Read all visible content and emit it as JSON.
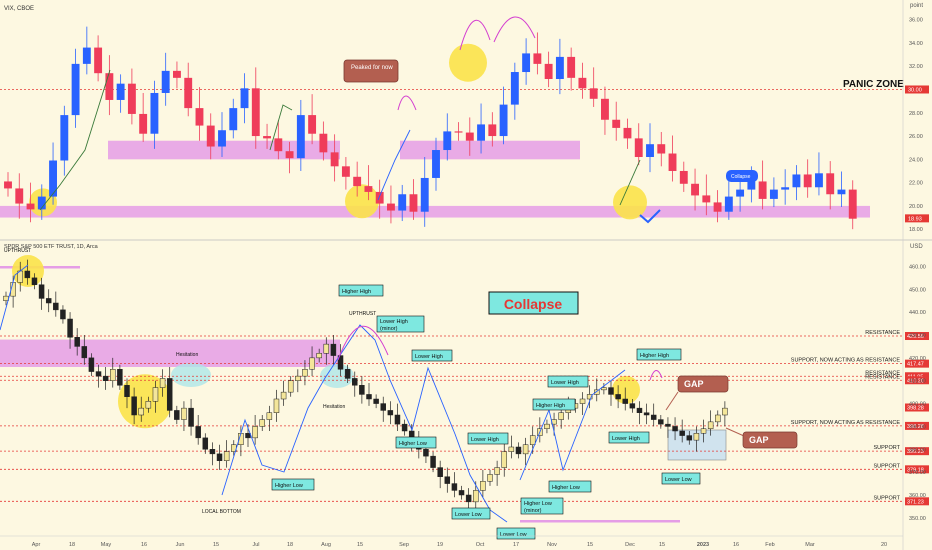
{
  "colors": {
    "bg": "#fdf8e1",
    "up": "#2962ff",
    "down": "#ef3c5a",
    "candle_up_spy": "#f4e69a",
    "candle_edge": "#222222",
    "pink_zone": "#e59de6",
    "yellow_blob": "#fbe24a",
    "teal_label": "#7ee8e0",
    "brown_callout": "#b35f50",
    "red_line": "#e53935",
    "collapse_tag": "#2962ff",
    "axis_text": "#555555"
  },
  "top_panel": {
    "title": "VIX, CBOE",
    "axis_unit": "point",
    "yticks": [
      "36.00",
      "34.00",
      "32.00",
      "30.00",
      "28.00",
      "26.00",
      "24.00",
      "22.00",
      "20.00",
      "18.00"
    ],
    "panic_zone_label": "PANIC ZONE",
    "panic_zone_level_tag": "30.00",
    "last_price_tag": "18.93",
    "callout_peaked": "Peaked for now",
    "callout_collapse": "Collapse"
  },
  "bottom_panel": {
    "title": "SPDR S&P 500 ETF TRUST, 1D, Arca",
    "axis_unit": "USD",
    "yticks": [
      "460.00",
      "450.00",
      "440.00",
      "430.00",
      "420.00",
      "410.00",
      "400.00",
      "390.00",
      "380.00",
      "370.00",
      "360.00",
      "350.00"
    ],
    "price_tags": [
      "429.56",
      "417.47",
      "411.95",
      "410.20",
      "398.28",
      "390.23",
      "379.18",
      "371.23",
      "357.24"
    ],
    "resistance_labels": [
      "RESISTANCE",
      "SUPPORT, NOW ACTING AS RESISTANCE",
      "RESISTANCE",
      "RESISTANCE",
      "SUPPORT, NOW ACTING AS RESISTANCE",
      "SUPPORT",
      "SUPPORT",
      "SUPPORT"
    ],
    "collapse_banner": "Collapse",
    "gap_labels": [
      "GAP",
      "GAP"
    ],
    "annotations": {
      "upthrust_top": "UPTHRUST",
      "hesitation_1": "Hesitation",
      "local_bottom": "LOCAL BOTTOM",
      "hesitation_2": "Hesitation",
      "upthrust_mid": "UPTHRUST",
      "higher_high_1": "Higher High",
      "lower_high_minor": "Lower High (minor)",
      "lower_high_1": "Lower High",
      "higher_low_1": "Higher Low",
      "higher_low_2": "Higher Low",
      "lower_high_2": "Lower High",
      "lower_low_1": "Lower Low",
      "lower_low_2": "Lower Low",
      "higher_low_minor": "Higher Low (minor)",
      "higher_high_2": "Higher High",
      "lower_high_3": "Lower High",
      "higher_low_3": "Higher Low",
      "higher_high_3": "Higher High",
      "lower_low_3": "Lower Low"
    }
  },
  "x_axis": {
    "ticks": [
      "Apr",
      "18",
      "May",
      "16",
      "Jun",
      "15",
      "Jul",
      "18",
      "Aug",
      "15",
      "Sep",
      "19",
      "Oct",
      "17",
      "Nov",
      "15",
      "Dec",
      "15",
      "2023",
      "16",
      "Feb",
      "Mar",
      "20"
    ]
  },
  "chart_data": [
    {
      "type": "candlestick",
      "title": "VIX, CBOE",
      "ylabel": "point",
      "ylim": [
        17.5,
        37
      ],
      "horizontal_lines": [
        {
          "value": 30,
          "label": "PANIC ZONE"
        }
      ],
      "zones": [
        {
          "from": 19.0,
          "to": 20.0,
          "label": ""
        },
        {
          "from": 24.0,
          "to": 25.6,
          "label": ""
        }
      ],
      "values_close_estimated": [
        21.5,
        20.2,
        19.7,
        20.8,
        23.9,
        27.8,
        32.2,
        33.6,
        31.4,
        29.1,
        30.5,
        27.9,
        26.2,
        29.7,
        31.6,
        31.0,
        28.4,
        26.9,
        25.1,
        26.5,
        28.4,
        30.1,
        26.0,
        25.8,
        24.7,
        24.1,
        27.8,
        26.2,
        24.6,
        23.4,
        22.5,
        21.7,
        21.2,
        20.2,
        19.6,
        21.0,
        19.5,
        22.4,
        24.8,
        26.4,
        26.3,
        25.6,
        27.0,
        26.0,
        28.7,
        31.5,
        33.1,
        32.2,
        30.9,
        32.8,
        31.0,
        30.1,
        29.2,
        27.4,
        26.7,
        25.8,
        24.2,
        25.3,
        24.5,
        23.0,
        21.9,
        20.9,
        20.3,
        19.5,
        20.8,
        21.4,
        22.1,
        20.6,
        21.4,
        21.6,
        22.7,
        21.6,
        22.8,
        21.0,
        21.4,
        18.9
      ],
      "last": 18.93
    },
    {
      "type": "candlestick",
      "title": "SPDR S&P 500 ETF TRUST, 1D, Arca",
      "ylabel": "USD",
      "ylim": [
        346,
        465
      ],
      "horizontal_lines": [
        {
          "value": 429.56,
          "label": "RESISTANCE"
        },
        {
          "value": 417.47,
          "label": "SUPPORT, NOW ACTING AS RESISTANCE"
        },
        {
          "value": 411.95,
          "label": "RESISTANCE"
        },
        {
          "value": 410.2,
          "label": "RESISTANCE"
        },
        {
          "value": 390.23,
          "label": "SUPPORT, NOW ACTING AS RESISTANCE"
        },
        {
          "value": 379.18,
          "label": "SUPPORT"
        },
        {
          "value": 371.23,
          "label": "SUPPORT"
        },
        {
          "value": 357.24,
          "label": "SUPPORT"
        }
      ],
      "zones": [
        {
          "from": 416,
          "to": 428,
          "label": ""
        }
      ],
      "values_close_estimated": [
        447,
        453,
        458,
        455,
        452,
        446,
        444,
        441,
        437,
        429,
        425,
        420,
        414,
        412,
        410,
        415,
        408,
        403,
        395,
        398,
        401,
        407,
        411,
        397,
        393,
        398,
        390,
        385,
        380,
        378,
        375,
        379,
        382,
        387,
        385,
        390,
        393,
        396,
        402,
        405,
        410,
        412,
        415,
        420,
        422,
        426,
        421,
        415,
        411,
        408,
        404,
        402,
        400,
        397,
        395,
        391,
        388,
        384,
        380,
        377,
        372,
        368,
        365,
        362,
        360,
        357,
        362,
        366,
        369,
        372,
        379,
        381,
        378,
        382,
        386,
        389,
        391,
        393,
        396,
        398,
        400,
        402,
        404,
        406,
        407,
        404,
        402,
        400,
        398,
        396,
        395,
        393,
        391,
        390,
        388,
        386,
        384,
        387,
        389,
        392,
        395,
        398
      ],
      "last": 398.28
    }
  ]
}
